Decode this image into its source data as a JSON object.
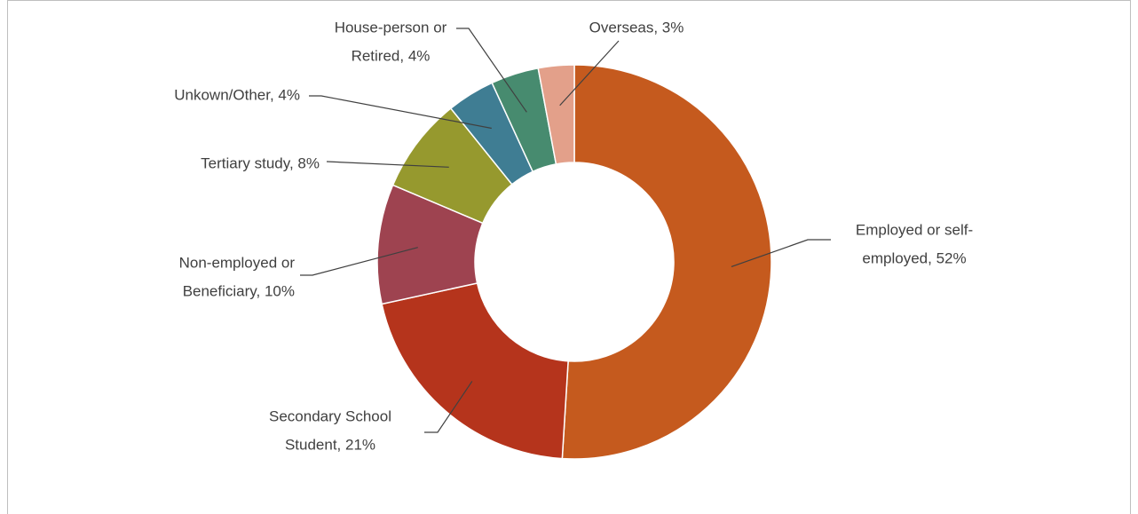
{
  "chart_data": {
    "type": "donut",
    "values": [
      52,
      21,
      10,
      8,
      4,
      4,
      3
    ],
    "value_labels": [
      [
        "Employed or self-",
        "employed, 52%"
      ],
      [
        "Secondary School",
        "Student, 21%"
      ],
      [
        "Non-employed or",
        "Beneficiary, 10%"
      ],
      [
        "Tertiary study, 8%"
      ],
      [
        "Unkown/Other, 4%"
      ],
      [
        "House-person or",
        "Retired, 4%"
      ],
      [
        "Overseas, 3%"
      ]
    ],
    "colors": [
      "#C55A1E",
      "#B5341C",
      "#9E4350",
      "#96992E",
      "#3F7D93",
      "#478B6F",
      "#E3A08A"
    ]
  }
}
